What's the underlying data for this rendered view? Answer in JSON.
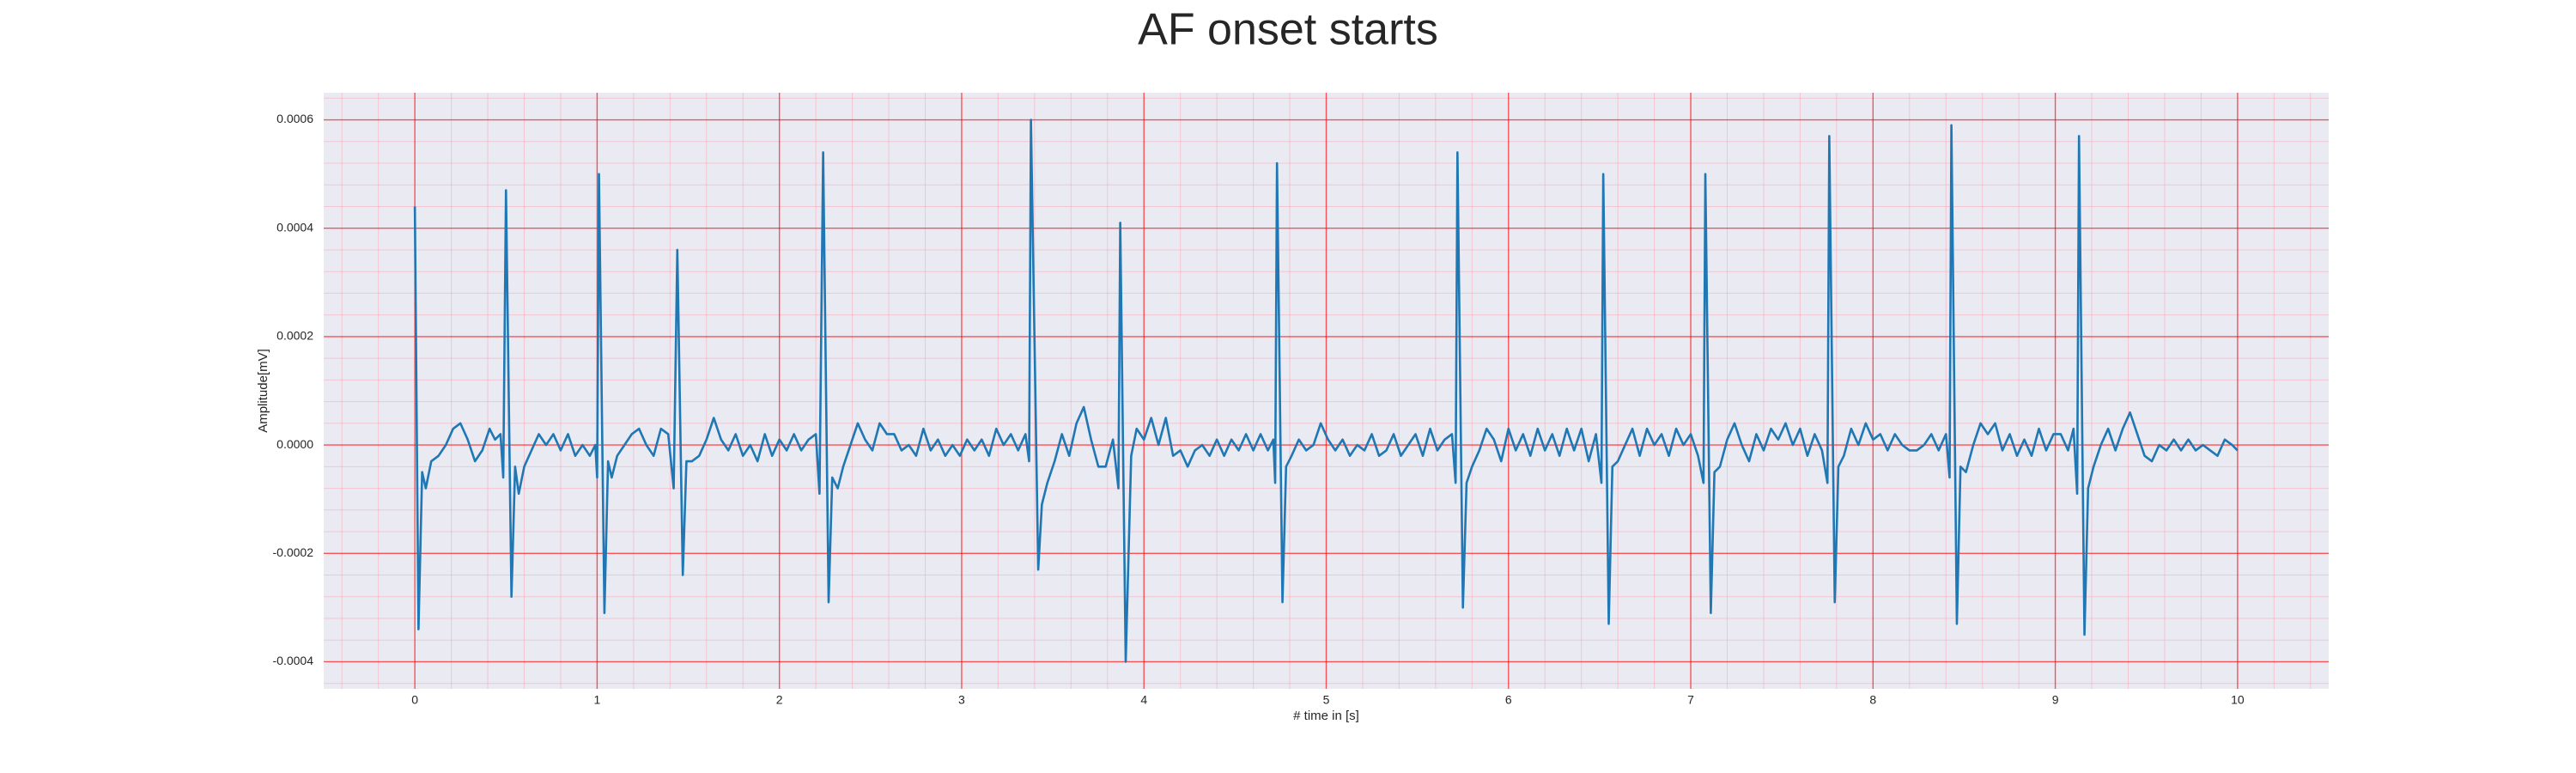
{
  "chart_data": {
    "type": "line",
    "title": "AF onset starts",
    "xlabel": "# time in [s]",
    "ylabel": "Amplitude[mV]",
    "color": "#1f77b4",
    "grid": true,
    "grid_color": "#ff0000",
    "minor_grid_color": "#ff9aa8",
    "background": "#eaeaf2",
    "xlim": [
      -0.5,
      10.5
    ],
    "ylim": [
      -0.00045,
      0.00065
    ],
    "xticks": [
      0,
      1,
      2,
      3,
      4,
      5,
      6,
      7,
      8,
      9,
      10
    ],
    "yticks": [
      -0.0004,
      -0.0002,
      {
        "value": 0,
        "label": "0.0000"
      },
      0.0002,
      0.0004,
      0.0006
    ],
    "xminorticks": [
      -0.4,
      -0.2,
      0,
      0.2,
      0.4,
      0.6,
      0.8,
      1,
      1.2,
      1.4,
      1.6,
      1.8,
      2,
      2.2,
      2.4,
      2.6,
      2.8,
      3,
      3.2,
      3.4,
      3.6,
      3.8,
      4,
      4.2,
      4.4,
      4.6,
      4.8,
      5,
      5.2,
      5.4,
      5.6,
      5.8,
      6,
      6.2,
      6.4,
      6.6,
      6.8,
      7,
      7.2,
      7.4,
      7.6,
      7.8,
      8,
      8.2,
      8.4,
      8.6,
      8.8,
      9,
      9.2,
      9.4,
      9.6,
      9.8,
      10,
      10.2,
      10.4
    ],
    "yminorticks": [
      -0.00044,
      -0.0004,
      -0.00036,
      -0.00032,
      -0.00028,
      -0.00024,
      -0.0002,
      -0.00016,
      -0.00012,
      -8e-05,
      -4e-05,
      0,
      4e-05,
      8e-05,
      0.00012,
      0.00016,
      0.0002,
      0.00024,
      0.00028,
      0.00032,
      0.00036,
      0.0004,
      0.00044,
      0.00048,
      0.00052,
      0.00056,
      0.0006,
      0.00064
    ],
    "x": [
      0,
      0.02,
      0.04,
      0.06,
      0.09,
      0.13,
      0.17,
      0.21,
      0.25,
      0.29,
      0.33,
      0.37,
      0.41,
      0.44,
      0.47,
      0.485,
      0.5,
      0.53,
      0.55,
      0.57,
      0.6,
      0.64,
      0.68,
      0.72,
      0.76,
      0.8,
      0.84,
      0.88,
      0.92,
      0.96,
      0.99,
      1,
      1.01,
      1.04,
      1.06,
      1.08,
      1.11,
      1.15,
      1.19,
      1.23,
      1.27,
      1.31,
      1.35,
      1.39,
      1.42,
      1.44,
      1.47,
      1.49,
      1.52,
      1.56,
      1.6,
      1.64,
      1.68,
      1.72,
      1.76,
      1.8,
      1.84,
      1.88,
      1.92,
      1.96,
      2,
      2.04,
      2.08,
      2.12,
      2.16,
      2.2,
      2.22,
      2.24,
      2.27,
      2.29,
      2.32,
      2.35,
      2.39,
      2.43,
      2.47,
      2.51,
      2.55,
      2.59,
      2.63,
      2.67,
      2.71,
      2.75,
      2.79,
      2.83,
      2.87,
      2.91,
      2.95,
      2.99,
      3.03,
      3.07,
      3.11,
      3.15,
      3.19,
      3.23,
      3.27,
      3.31,
      3.35,
      3.37,
      3.38,
      3.42,
      3.44,
      3.47,
      3.51,
      3.55,
      3.59,
      3.63,
      3.67,
      3.71,
      3.75,
      3.79,
      3.83,
      3.86,
      3.87,
      3.9,
      3.93,
      3.96,
      4,
      4.04,
      4.08,
      4.12,
      4.16,
      4.2,
      4.24,
      4.28,
      4.32,
      4.36,
      4.4,
      4.44,
      4.48,
      4.52,
      4.56,
      4.6,
      4.64,
      4.68,
      4.71,
      4.72,
      4.73,
      4.76,
      4.78,
      4.81,
      4.85,
      4.89,
      4.93,
      4.97,
      5.01,
      5.05,
      5.09,
      5.13,
      5.17,
      5.21,
      5.25,
      5.29,
      5.33,
      5.37,
      5.41,
      5.45,
      5.49,
      5.53,
      5.57,
      5.61,
      5.65,
      5.69,
      5.71,
      5.72,
      5.75,
      5.77,
      5.8,
      5.84,
      5.88,
      5.92,
      5.96,
      6,
      6.04,
      6.08,
      6.12,
      6.16,
      6.2,
      6.24,
      6.28,
      6.32,
      6.36,
      6.4,
      6.44,
      6.48,
      6.51,
      6.52,
      6.55,
      6.57,
      6.6,
      6.64,
      6.68,
      6.72,
      6.76,
      6.8,
      6.84,
      6.88,
      6.92,
      6.96,
      7,
      7.04,
      7.07,
      7.08,
      7.11,
      7.13,
      7.16,
      7.2,
      7.24,
      7.28,
      7.32,
      7.36,
      7.4,
      7.44,
      7.48,
      7.52,
      7.56,
      7.6,
      7.64,
      7.68,
      7.72,
      7.75,
      7.76,
      7.79,
      7.81,
      7.84,
      7.88,
      7.92,
      7.96,
      8,
      8.04,
      8.08,
      8.12,
      8.16,
      8.2,
      8.24,
      8.28,
      8.32,
      8.36,
      8.4,
      8.42,
      8.43,
      8.46,
      8.48,
      8.51,
      8.55,
      8.59,
      8.63,
      8.67,
      8.71,
      8.75,
      8.79,
      8.83,
      8.87,
      8.91,
      8.95,
      8.99,
      9.03,
      9.07,
      9.1,
      9.12,
      9.13,
      9.16,
      9.18,
      9.21,
      9.25,
      9.29,
      9.33,
      9.37,
      9.41,
      9.45,
      9.49,
      9.53,
      9.57,
      9.61,
      9.65,
      9.69,
      9.73,
      9.77,
      9.81,
      9.85,
      9.89,
      9.93,
      9.97,
      10
    ],
    "values": [
      0.00044,
      -0.00034,
      -5e-05,
      -8e-05,
      -3e-05,
      -2e-05,
      0,
      3e-05,
      4e-05,
      1e-05,
      -3e-05,
      -1e-05,
      3e-05,
      1e-05,
      2e-05,
      -6e-05,
      0.00047,
      -0.00028,
      -4e-05,
      -9e-05,
      -4e-05,
      -1e-05,
      2e-05,
      0,
      2e-05,
      -1e-05,
      2e-05,
      -2e-05,
      0,
      -2e-05,
      0,
      -6e-05,
      0.0005,
      -0.00031,
      -3e-05,
      -6e-05,
      -2e-05,
      0,
      2e-05,
      3e-05,
      0,
      -2e-05,
      3e-05,
      2e-05,
      -8e-05,
      0.00036,
      -0.00024,
      -3e-05,
      -3e-05,
      -2e-05,
      1e-05,
      5e-05,
      1e-05,
      -1e-05,
      2e-05,
      -2e-05,
      0,
      -3e-05,
      2e-05,
      -2e-05,
      1e-05,
      -1e-05,
      2e-05,
      -1e-05,
      1e-05,
      2e-05,
      -9e-05,
      0.00054,
      -0.00029,
      -6e-05,
      -8e-05,
      -4e-05,
      0,
      4e-05,
      1e-05,
      -1e-05,
      4e-05,
      2e-05,
      2e-05,
      -1e-05,
      0,
      -2e-05,
      3e-05,
      -1e-05,
      1e-05,
      -2e-05,
      0,
      -2e-05,
      1e-05,
      -1e-05,
      1e-05,
      -2e-05,
      3e-05,
      0,
      2e-05,
      -1e-05,
      2e-05,
      -3e-05,
      0.0006,
      -0.00023,
      -0.00011,
      -7e-05,
      -3e-05,
      2e-05,
      -2e-05,
      4e-05,
      7e-05,
      1e-05,
      -4e-05,
      -4e-05,
      1e-05,
      -8e-05,
      0.00041,
      -0.0004,
      -2e-05,
      3e-05,
      1e-05,
      5e-05,
      0,
      5e-05,
      -2e-05,
      -1e-05,
      -4e-05,
      -1e-05,
      0,
      -2e-05,
      1e-05,
      -2e-05,
      1e-05,
      -1e-05,
      2e-05,
      -1e-05,
      2e-05,
      -1e-05,
      1e-05,
      -7e-05,
      0.00052,
      -0.00029,
      -4e-05,
      -2e-05,
      1e-05,
      -1e-05,
      0,
      4e-05,
      1e-05,
      -1e-05,
      1e-05,
      -2e-05,
      0,
      -1e-05,
      2e-05,
      -2e-05,
      -1e-05,
      2e-05,
      -2e-05,
      0,
      2e-05,
      -2e-05,
      3e-05,
      -1e-05,
      1e-05,
      2e-05,
      -7e-05,
      0.00054,
      -0.0003,
      -7e-05,
      -4e-05,
      -1e-05,
      3e-05,
      1e-05,
      -3e-05,
      3e-05,
      -1e-05,
      2e-05,
      -2e-05,
      3e-05,
      -1e-05,
      2e-05,
      -2e-05,
      3e-05,
      -1e-05,
      3e-05,
      -3e-05,
      2e-05,
      -7e-05,
      0.0005,
      -0.00033,
      -4e-05,
      -3e-05,
      0,
      3e-05,
      -2e-05,
      3e-05,
      0,
      2e-05,
      -2e-05,
      3e-05,
      0,
      2e-05,
      -2e-05,
      -7e-05,
      0.0005,
      -0.00031,
      -5e-05,
      -4e-05,
      1e-05,
      4e-05,
      0,
      -3e-05,
      2e-05,
      -1e-05,
      3e-05,
      1e-05,
      4e-05,
      0,
      3e-05,
      -2e-05,
      2e-05,
      -1e-05,
      -7e-05,
      0.00057,
      -0.00029,
      -4e-05,
      -2e-05,
      3e-05,
      0,
      4e-05,
      1e-05,
      2e-05,
      -1e-05,
      2e-05,
      0,
      -1e-05,
      -1e-05,
      0,
      2e-05,
      -1e-05,
      2e-05,
      -6e-05,
      0.00059,
      -0.00033,
      -4e-05,
      -5e-05,
      0,
      4e-05,
      2e-05,
      4e-05,
      -1e-05,
      2e-05,
      -2e-05,
      1e-05,
      -2e-05,
      3e-05,
      -1e-05,
      2e-05,
      2e-05,
      -1e-05,
      3e-05,
      -9e-05,
      0.00057,
      -0.00035,
      -8e-05,
      -4e-05,
      0,
      3e-05,
      -1e-05,
      3e-05,
      6e-05,
      2e-05,
      -2e-05,
      -3e-05,
      0,
      -1e-05,
      1e-05,
      -1e-05,
      1e-05,
      -1e-05,
      0,
      -1e-05,
      -2e-05,
      1e-05,
      0,
      -1e-05
    ]
  }
}
